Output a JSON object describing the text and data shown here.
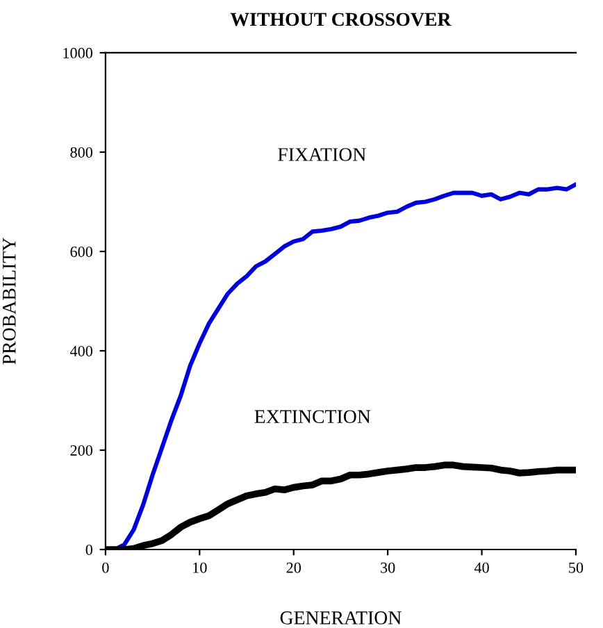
{
  "chart_data": {
    "type": "line",
    "title": "WITHOUT CROSSOVER",
    "xlabel": "GENERATION",
    "ylabel": "PROBABILITY",
    "x": [
      0,
      1,
      2,
      3,
      4,
      5,
      6,
      7,
      8,
      9,
      10,
      11,
      12,
      13,
      14,
      15,
      16,
      17,
      18,
      19,
      20,
      21,
      22,
      23,
      24,
      25,
      26,
      27,
      28,
      29,
      30,
      31,
      32,
      33,
      34,
      35,
      36,
      37,
      38,
      39,
      40,
      41,
      42,
      43,
      44,
      45,
      46,
      47,
      48,
      49,
      50
    ],
    "series": [
      {
        "name": "FIXATION",
        "color": "#0000dd",
        "values": [
          0,
          0,
          10,
          40,
          90,
          150,
          205,
          260,
          310,
          370,
          415,
          455,
          485,
          515,
          535,
          550,
          570,
          580,
          595,
          610,
          620,
          625,
          640,
          642,
          645,
          650,
          660,
          662,
          668,
          672,
          678,
          680,
          690,
          698,
          700,
          705,
          712,
          718,
          718,
          718,
          712,
          715,
          705,
          710,
          718,
          715,
          725,
          725,
          728,
          725,
          735
        ]
      },
      {
        "name": "EXTINCTION",
        "color": "#000000",
        "values": [
          0,
          0,
          0,
          2,
          8,
          12,
          18,
          30,
          45,
          55,
          62,
          68,
          80,
          92,
          100,
          108,
          112,
          115,
          122,
          120,
          125,
          128,
          130,
          138,
          138,
          142,
          150,
          150,
          152,
          155,
          158,
          160,
          162,
          165,
          165,
          167,
          170,
          170,
          167,
          166,
          165,
          164,
          160,
          158,
          154,
          155,
          157,
          158,
          160,
          160,
          160
        ]
      }
    ],
    "xlim": [
      0,
      50
    ],
    "xticks": [
      0,
      10,
      20,
      30,
      40,
      50
    ],
    "ylim": [
      0,
      1000
    ],
    "yticks": [
      0,
      200,
      400,
      600,
      800,
      1000
    ],
    "grid": false,
    "legend": false,
    "marker": "none",
    "line_style": "solid"
  }
}
